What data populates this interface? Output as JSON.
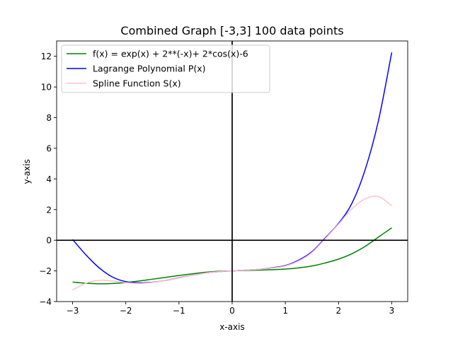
{
  "chart_data": {
    "type": "line",
    "title": "Combined Graph [-3,3] 100 data points",
    "xlabel": "x-axis",
    "ylabel": "y-axis",
    "xlim": [
      -3.3,
      3.3
    ],
    "ylim": [
      -4,
      13
    ],
    "xticks": [
      -3,
      -2,
      -1,
      0,
      1,
      2,
      3
    ],
    "yticks": [
      -4,
      -2,
      0,
      2,
      4,
      6,
      8,
      10,
      12
    ],
    "grid": false,
    "legend_position": "top-left",
    "reference_lines": {
      "x": 0,
      "y": 0,
      "color": "#000000"
    },
    "series": [
      {
        "name": "f(x) = exp(x) + 2**(-x)+ 2*cos(x)-6",
        "color": "#008000",
        "x": [
          -3.0,
          -2.75,
          -2.5,
          -2.25,
          -2.0,
          -1.75,
          -1.5,
          -1.25,
          -1.0,
          -0.75,
          -0.5,
          -0.25,
          0.0,
          0.25,
          0.5,
          0.75,
          1.0,
          1.25,
          1.5,
          1.75,
          2.0,
          2.25,
          2.5,
          2.75,
          3.0
        ],
        "y": [
          -2.73,
          -2.8,
          -2.84,
          -2.82,
          -2.76,
          -2.66,
          -2.54,
          -2.42,
          -2.3,
          -2.19,
          -2.09,
          -2.02,
          -2.0,
          -1.97,
          -1.95,
          -1.92,
          -1.88,
          -1.8,
          -1.68,
          -1.48,
          -1.23,
          -0.88,
          -0.4,
          0.21,
          0.81
        ]
      },
      {
        "name": "Lagrange Polynomial P(x)",
        "color": "#0000ff",
        "x": [
          -3.0,
          -2.75,
          -2.5,
          -2.25,
          -2.0,
          -1.75,
          -1.5,
          -1.25,
          -1.0,
          -0.75,
          -0.5,
          -0.25,
          0.0,
          0.25,
          0.5,
          0.75,
          1.0,
          1.25,
          1.5,
          1.75,
          2.0,
          2.25,
          2.5,
          2.75,
          3.0
        ],
        "y": [
          0.05,
          -0.95,
          -1.8,
          -2.4,
          -2.7,
          -2.78,
          -2.74,
          -2.62,
          -2.45,
          -2.28,
          -2.14,
          -2.05,
          -2.0,
          -1.95,
          -1.9,
          -1.8,
          -1.65,
          -1.3,
          -0.75,
          0.15,
          1.1,
          2.4,
          4.6,
          7.8,
          12.25
        ]
      },
      {
        "name": "Spline Function S(x)",
        "color": "#ffc0cb",
        "x": [
          -3.0,
          -2.75,
          -2.5,
          -2.25,
          -2.0,
          -1.75,
          -1.5,
          -1.25,
          -1.0,
          -0.75,
          -0.5,
          -0.25,
          0.0,
          0.25,
          0.5,
          0.75,
          1.0,
          1.25,
          1.5,
          1.75,
          2.0,
          2.25,
          2.5,
          2.75,
          3.0
        ],
        "y": [
          -3.25,
          -2.8,
          -2.62,
          -2.66,
          -2.76,
          -2.82,
          -2.75,
          -2.62,
          -2.46,
          -2.28,
          -2.14,
          -2.05,
          -2.0,
          -1.95,
          -1.9,
          -1.82,
          -1.68,
          -1.35,
          -0.8,
          0.1,
          1.05,
          2.05,
          2.7,
          2.85,
          2.25
        ]
      }
    ]
  }
}
